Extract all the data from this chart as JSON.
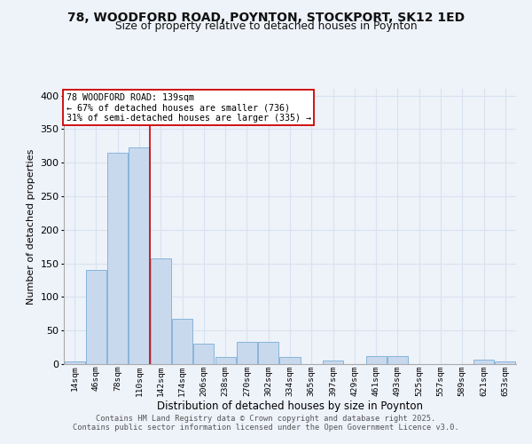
{
  "title1": "78, WOODFORD ROAD, POYNTON, STOCKPORT, SK12 1ED",
  "title2": "Size of property relative to detached houses in Poynton",
  "xlabel": "Distribution of detached houses by size in Poynton",
  "ylabel": "Number of detached properties",
  "bar_labels": [
    "14sqm",
    "46sqm",
    "78sqm",
    "110sqm",
    "142sqm",
    "174sqm",
    "206sqm",
    "238sqm",
    "270sqm",
    "302sqm",
    "334sqm",
    "365sqm",
    "397sqm",
    "429sqm",
    "461sqm",
    "493sqm",
    "525sqm",
    "557sqm",
    "589sqm",
    "621sqm",
    "653sqm"
  ],
  "bar_heights": [
    4,
    140,
    315,
    323,
    158,
    68,
    30,
    10,
    33,
    33,
    10,
    0,
    5,
    0,
    12,
    12,
    0,
    0,
    0,
    7,
    4
  ],
  "bar_color": "#c8d9ee",
  "bar_edge_color": "#7aadd4",
  "background_color": "#eef2f9",
  "grid_color": "#d8e2f0",
  "red_line_x": 3.5,
  "annotation_text": "78 WOODFORD ROAD: 139sqm\n← 67% of detached houses are smaller (736)\n31% of semi-detached houses are larger (335) →",
  "annotation_box_color": "#ffffff",
  "annotation_box_edge": "#cc0000",
  "footer1": "Contains HM Land Registry data © Crown copyright and database right 2025.",
  "footer2": "Contains public sector information licensed under the Open Government Licence v3.0.",
  "ylim": [
    0,
    410
  ],
  "yticks": [
    0,
    50,
    100,
    150,
    200,
    250,
    300,
    350,
    400
  ]
}
